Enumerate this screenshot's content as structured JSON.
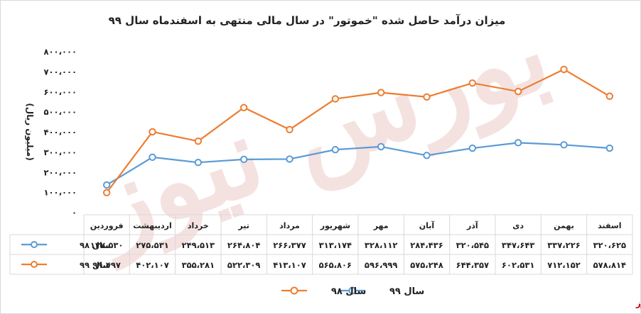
{
  "chart_data": {
    "type": "line",
    "title": "میزان درآمد حاصل شده \"خموتور\" در سال مالی منتهی به اسفندماه سال ۹۹",
    "ylabel": "(میلیون ریال)",
    "ylim": [
      0,
      800000
    ],
    "yticks": [
      "۰",
      "۱۰۰،۰۰۰",
      "۲۰۰،۰۰۰",
      "۳۰۰،۰۰۰",
      "۴۰۰،۰۰۰",
      "۵۰۰،۰۰۰",
      "۶۰۰،۰۰۰",
      "۷۰۰،۰۰۰",
      "۸۰۰،۰۰۰"
    ],
    "grid": false,
    "legend": "bottom",
    "categories": [
      "فروردین",
      "اردیبهشت",
      "خرداد",
      "تیر",
      "مرداد",
      "شهریور",
      "مهر",
      "آبان",
      "آذر",
      "دی",
      "بهمن",
      "اسفند"
    ],
    "series": [
      {
        "name": "سال ۹۸",
        "color": "#5b9bd5",
        "values": [
          137530,
          275531,
          249513,
          264804,
          266377,
          313174,
          328112,
          284436,
          320545,
          347643,
          337226,
          320625
        ],
        "labels": [
          "۱۳۷،۵۳۰",
          "۲۷۵،۵۳۱",
          "۲۴۹،۵۱۳",
          "۲۶۴،۸۰۴",
          "۲۶۶،۳۷۷",
          "۳۱۳،۱۷۴",
          "۳۲۸،۱۱۲",
          "۲۸۴،۴۳۶",
          "۳۲۰،۵۴۵",
          "۳۴۷،۶۴۳",
          "۳۳۷،۲۲۶",
          "۳۲۰،۶۲۵"
        ]
      },
      {
        "name": "سال ۹۹",
        "color": "#ed7d31",
        "values": [
          99497,
          402107,
          355281,
          522309,
          413107,
          565806,
          596999,
          575248,
          644357,
          602531,
          712152,
          578814
        ],
        "labels": [
          "۹۹،۴۹۷",
          "۴۰۲،۱۰۷",
          "۳۵۵،۲۸۱",
          "۵۲۲،۳۰۹",
          "۴۱۳،۱۰۷",
          "۵۶۵،۸۰۶",
          "۵۹۶،۹۹۹",
          "۵۷۵،۲۴۸",
          "۶۴۴،۳۵۷",
          "۶۰۲،۵۳۱",
          "۷۱۲،۱۵۲",
          "۵۷۸،۸۱۴"
        ]
      }
    ]
  },
  "watermark": "بورس نیوز",
  "source": "بورس نیوز"
}
